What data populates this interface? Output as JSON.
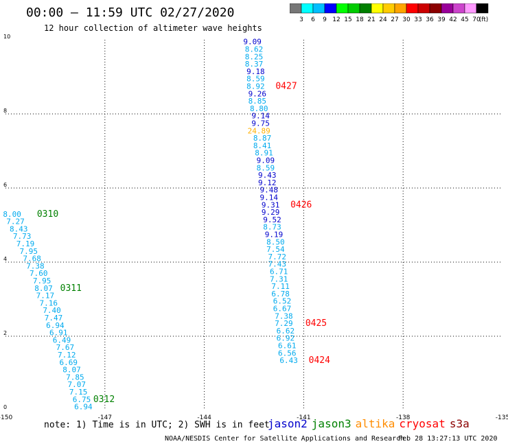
{
  "title": "00:00 – 11:59 UTC 02/27/2020",
  "subtitle": "12 hour collection of altimeter wave heights",
  "legend": {
    "colors": [
      "#777777",
      "#00ffff",
      "#00bfff",
      "#0000ff",
      "#00ff00",
      "#00cc00",
      "#008000",
      "#ffff00",
      "#ffcc00",
      "#ffa500",
      "#ff0000",
      "#cc0000",
      "#8b0000",
      "#990099",
      "#cc44cc",
      "#ff99ff",
      "#000000"
    ],
    "labels": [
      "3",
      "6",
      "9",
      "12",
      "15",
      "18",
      "21",
      "24",
      "27",
      "30",
      "33",
      "36",
      "39",
      "42",
      "45",
      "70",
      "(ft)"
    ]
  },
  "chart_data": {
    "type": "scatter",
    "xlim": [
      -150,
      -135
    ],
    "ylim": [
      0,
      10
    ],
    "x_ticks": [
      "-150",
      "-147",
      "-144",
      "-141",
      "-138",
      "-135"
    ],
    "y_ticks": [
      "0",
      "2",
      "4",
      "6",
      "8",
      "10"
    ],
    "grid": true,
    "series": [
      {
        "name": "jason3",
        "color": "#008000",
        "points": [
          {
            "x": -149.8,
            "y": 5.3,
            "v": "8.00",
            "c": "#00aaee"
          },
          {
            "x": -149.7,
            "y": 5.1,
            "v": "7.27",
            "c": "#00aaee"
          },
          {
            "x": -149.6,
            "y": 4.9,
            "v": "8.43",
            "c": "#00aaee"
          },
          {
            "x": -149.5,
            "y": 4.7,
            "v": "7.73",
            "c": "#00aaee"
          },
          {
            "x": -149.4,
            "y": 4.5,
            "v": "7.19",
            "c": "#00aaee"
          },
          {
            "x": -149.3,
            "y": 4.3,
            "v": "7.95",
            "c": "#00aaee"
          },
          {
            "x": -149.2,
            "y": 4.1,
            "v": "7.68",
            "c": "#00aaee"
          },
          {
            "x": -149.1,
            "y": 3.9,
            "v": "7.38",
            "c": "#00aaee"
          },
          {
            "x": -149.0,
            "y": 3.7,
            "v": "7.60",
            "c": "#00aaee"
          },
          {
            "x": -148.9,
            "y": 3.5,
            "v": "7.95",
            "c": "#00aaee"
          },
          {
            "x": -148.85,
            "y": 3.3,
            "v": "8.07",
            "c": "#00aaee"
          },
          {
            "x": -148.8,
            "y": 3.1,
            "v": "7.17",
            "c": "#00aaee"
          },
          {
            "x": -148.7,
            "y": 2.9,
            "v": "7.16",
            "c": "#00aaee"
          },
          {
            "x": -148.6,
            "y": 2.7,
            "v": "7.40",
            "c": "#00aaee"
          },
          {
            "x": -148.55,
            "y": 2.5,
            "v": "7.47",
            "c": "#00aaee"
          },
          {
            "x": -148.5,
            "y": 2.3,
            "v": "6.94",
            "c": "#00aaee"
          },
          {
            "x": -148.4,
            "y": 2.1,
            "v": "6.91",
            "c": "#00aaee"
          },
          {
            "x": -148.3,
            "y": 1.9,
            "v": "6.49",
            "c": "#00aaee"
          },
          {
            "x": -148.2,
            "y": 1.7,
            "v": "7.67",
            "c": "#00aaee"
          },
          {
            "x": -148.15,
            "y": 1.5,
            "v": "7.12",
            "c": "#00aaee"
          },
          {
            "x": -148.1,
            "y": 1.3,
            "v": "6.69",
            "c": "#00aaee"
          },
          {
            "x": -148.0,
            "y": 1.1,
            "v": "8.07",
            "c": "#00aaee"
          },
          {
            "x": -147.9,
            "y": 0.9,
            "v": "7.85",
            "c": "#00aaee"
          },
          {
            "x": -147.85,
            "y": 0.7,
            "v": "7.07",
            "c": "#00aaee"
          },
          {
            "x": -147.8,
            "y": 0.5,
            "v": "7.15",
            "c": "#00aaee"
          },
          {
            "x": -147.7,
            "y": 0.3,
            "v": "6.75",
            "c": "#00aaee"
          },
          {
            "x": -147.65,
            "y": 0.1,
            "v": "6.94",
            "c": "#00aaee"
          }
        ],
        "labels": [
          {
            "x": -149.05,
            "y": 5.3,
            "t": "0310"
          },
          {
            "x": -148.35,
            "y": 3.3,
            "t": "0311"
          },
          {
            "x": -147.35,
            "y": 0.3,
            "t": "0312"
          }
        ]
      },
      {
        "name": "cryosat",
        "color": "#ff0000",
        "points": [
          {
            "x": -142.55,
            "y": 9.95,
            "v": "9.09",
            "c": "#0000cc"
          },
          {
            "x": -142.5,
            "y": 9.75,
            "v": "8.62",
            "c": "#00aaee"
          },
          {
            "x": -142.5,
            "y": 9.55,
            "v": "8.25",
            "c": "#00aaee"
          },
          {
            "x": -142.5,
            "y": 9.35,
            "v": "8.37",
            "c": "#00aaee"
          },
          {
            "x": -142.45,
            "y": 9.15,
            "v": "9.18",
            "c": "#0000cc"
          },
          {
            "x": -142.45,
            "y": 8.95,
            "v": "8.59",
            "c": "#00aaee"
          },
          {
            "x": -142.45,
            "y": 8.75,
            "v": "8.92",
            "c": "#00aaee"
          },
          {
            "x": -142.4,
            "y": 8.55,
            "v": "9.26",
            "c": "#0000cc"
          },
          {
            "x": -142.4,
            "y": 8.35,
            "v": "8.85",
            "c": "#00aaee"
          },
          {
            "x": -142.35,
            "y": 8.15,
            "v": "8.80",
            "c": "#00aaee"
          },
          {
            "x": -142.3,
            "y": 7.95,
            "v": "9.14",
            "c": "#0000cc"
          },
          {
            "x": -142.3,
            "y": 7.75,
            "v": "9.75",
            "c": "#0000cc"
          },
          {
            "x": -142.35,
            "y": 7.55,
            "v": "24.89",
            "c": "#ffb000"
          },
          {
            "x": -142.25,
            "y": 7.35,
            "v": "8.87",
            "c": "#00aaee"
          },
          {
            "x": -142.25,
            "y": 7.15,
            "v": "8.41",
            "c": "#00aaee"
          },
          {
            "x": -142.2,
            "y": 6.95,
            "v": "8.91",
            "c": "#00aaee"
          },
          {
            "x": -142.15,
            "y": 6.75,
            "v": "9.09",
            "c": "#0000cc"
          },
          {
            "x": -142.15,
            "y": 6.55,
            "v": "8.59",
            "c": "#00aaee"
          },
          {
            "x": -142.1,
            "y": 6.35,
            "v": "9.43",
            "c": "#0000cc"
          },
          {
            "x": -142.1,
            "y": 6.15,
            "v": "9.12",
            "c": "#0000cc"
          },
          {
            "x": -142.05,
            "y": 5.95,
            "v": "9.48",
            "c": "#0000cc"
          },
          {
            "x": -142.05,
            "y": 5.75,
            "v": "9.14",
            "c": "#0000cc"
          },
          {
            "x": -142.0,
            "y": 5.55,
            "v": "9.31",
            "c": "#0000cc"
          },
          {
            "x": -142.0,
            "y": 5.35,
            "v": "9.29",
            "c": "#0000cc"
          },
          {
            "x": -141.95,
            "y": 5.15,
            "v": "9.52",
            "c": "#0000cc"
          },
          {
            "x": -141.95,
            "y": 4.95,
            "v": "8.73",
            "c": "#00aaee"
          },
          {
            "x": -141.9,
            "y": 4.75,
            "v": "9.19",
            "c": "#0000cc"
          },
          {
            "x": -141.85,
            "y": 4.55,
            "v": "8.50",
            "c": "#00aaee"
          },
          {
            "x": -141.85,
            "y": 4.35,
            "v": "7.54",
            "c": "#00aaee"
          },
          {
            "x": -141.8,
            "y": 4.15,
            "v": "7.72",
            "c": "#00aaee"
          },
          {
            "x": -141.8,
            "y": 3.95,
            "v": "7.43",
            "c": "#00aaee"
          },
          {
            "x": -141.75,
            "y": 3.75,
            "v": "6.71",
            "c": "#00aaee"
          },
          {
            "x": -141.75,
            "y": 3.55,
            "v": "7.31",
            "c": "#00aaee"
          },
          {
            "x": -141.7,
            "y": 3.35,
            "v": "7.11",
            "c": "#00aaee"
          },
          {
            "x": -141.7,
            "y": 3.15,
            "v": "6.78",
            "c": "#00aaee"
          },
          {
            "x": -141.65,
            "y": 2.95,
            "v": "6.52",
            "c": "#00aaee"
          },
          {
            "x": -141.65,
            "y": 2.75,
            "v": "6.67",
            "c": "#00aaee"
          },
          {
            "x": -141.6,
            "y": 2.55,
            "v": "7.38",
            "c": "#00aaee"
          },
          {
            "x": -141.6,
            "y": 2.35,
            "v": "7.29",
            "c": "#00aaee"
          },
          {
            "x": -141.55,
            "y": 2.15,
            "v": "6.62",
            "c": "#00aaee"
          },
          {
            "x": -141.55,
            "y": 1.95,
            "v": "6.92",
            "c": "#00aaee"
          },
          {
            "x": -141.5,
            "y": 1.75,
            "v": "6.61",
            "c": "#00aaee"
          },
          {
            "x": -141.5,
            "y": 1.55,
            "v": "6.56",
            "c": "#00aaee"
          },
          {
            "x": -141.45,
            "y": 1.35,
            "v": "6.43",
            "c": "#00aaee"
          }
        ],
        "labels": [
          {
            "x": -141.85,
            "y": 8.75,
            "t": "0427"
          },
          {
            "x": -141.4,
            "y": 5.55,
            "t": "0426"
          },
          {
            "x": -140.95,
            "y": 2.35,
            "t": "0425"
          },
          {
            "x": -140.85,
            "y": 1.35,
            "t": "0424"
          }
        ]
      }
    ]
  },
  "note": "note:  1) Time is in UTC; 2) SWH is in feet",
  "satellites": [
    {
      "name": "jason2",
      "color": "#0000cc"
    },
    {
      "name": "jason3",
      "color": "#008000"
    },
    {
      "name": "altika",
      "color": "#ff8c00"
    },
    {
      "name": "cryosat",
      "color": "#ff0000"
    },
    {
      "name": "s3a",
      "color": "#8b0000"
    }
  ],
  "credit": "NOAA/NESDIS Center for Satellite Applications and Research",
  "timestamp": "Feb 28 13:27:13 UTC 2020"
}
